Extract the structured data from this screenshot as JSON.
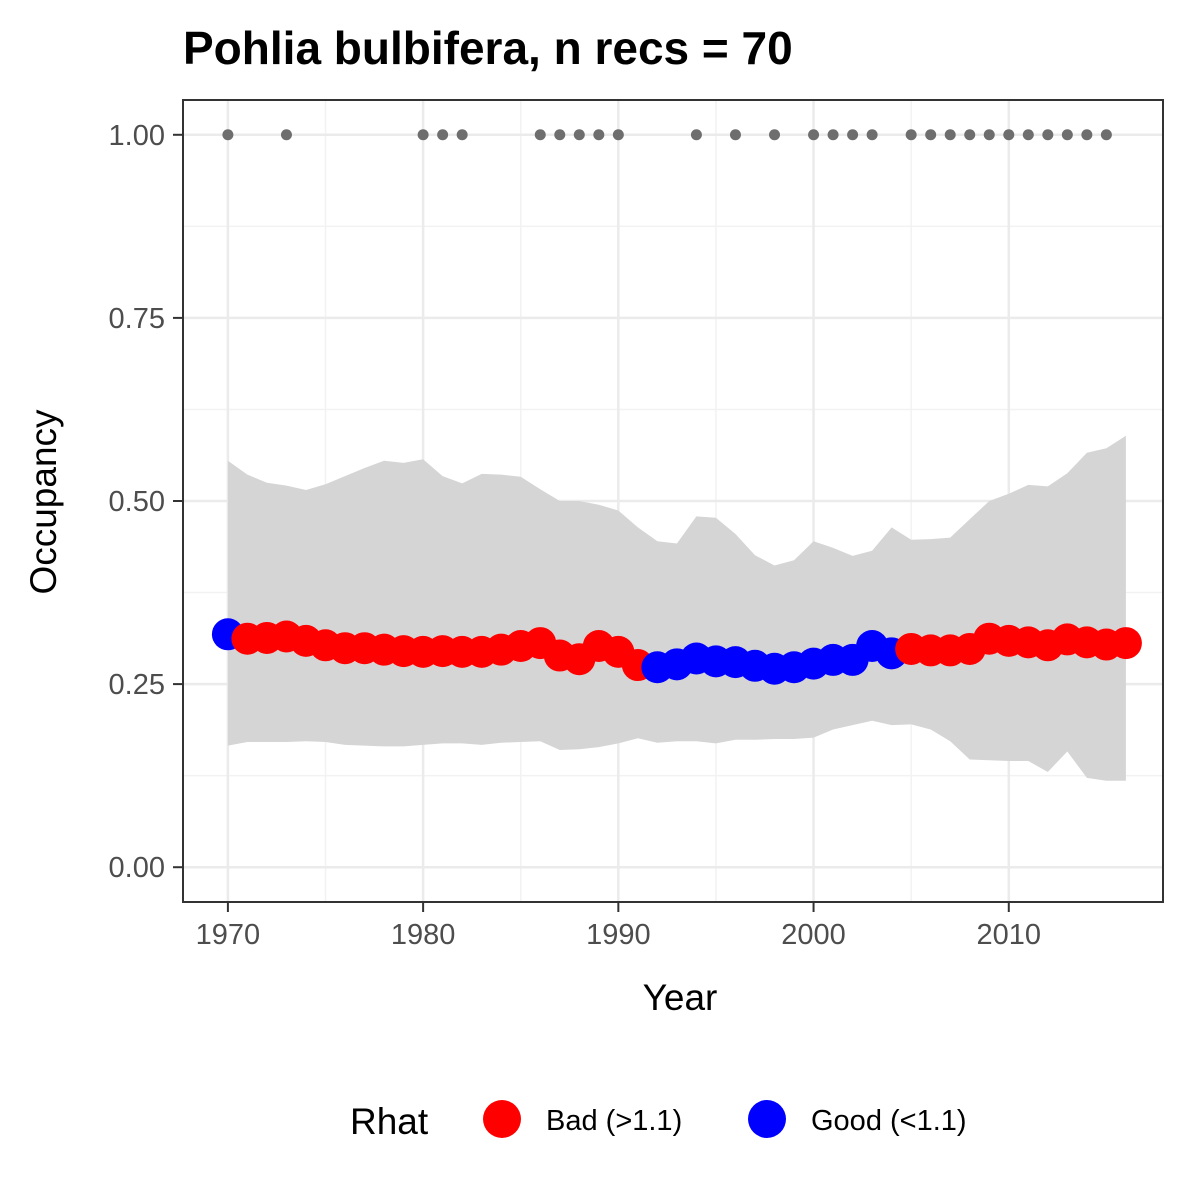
{
  "chart_data": {
    "type": "line",
    "title": "Pohlia bulbifera, n recs = 70",
    "xlabel": "Year",
    "ylabel": "Occupancy",
    "xlim": [
      1967.7,
      2017.9
    ],
    "ylim": [
      -0.0475,
      1.0475
    ],
    "x_ticks": [
      1970,
      1980,
      1990,
      2000,
      2010
    ],
    "x_tick_labels": [
      "1970",
      "1980",
      "1990",
      "2000",
      "2010"
    ],
    "y_ticks": [
      0,
      0.25,
      0.5,
      0.75,
      1.0
    ],
    "y_tick_labels": [
      "0.00",
      "0.25",
      "0.50",
      "0.75",
      "1.00"
    ],
    "grid": true,
    "legend": {
      "title": "Rhat",
      "position": "bottom",
      "entries": [
        {
          "label": "Bad (>1.1)",
          "color": "#ff0000"
        },
        {
          "label": "Good (<1.1)",
          "color": "#0000ff"
        }
      ]
    },
    "colors": {
      "bad": "#ff0000",
      "good": "#0000ff",
      "ribbon": "#d5d5d5",
      "records": "#6e6e6e"
    },
    "series": [
      {
        "name": "Occupancy",
        "x": [
          1970,
          1971,
          1972,
          1973,
          1974,
          1975,
          1976,
          1977,
          1978,
          1979,
          1980,
          1981,
          1982,
          1983,
          1984,
          1985,
          1986,
          1987,
          1988,
          1989,
          1990,
          1991,
          1992,
          1993,
          1994,
          1995,
          1996,
          1997,
          1998,
          1999,
          2000,
          2001,
          2002,
          2003,
          2004,
          2005,
          2006,
          2007,
          2008,
          2009,
          2010,
          2011,
          2012,
          2013,
          2014,
          2015,
          2016
        ],
        "y": [
          0.318,
          0.312,
          0.313,
          0.315,
          0.309,
          0.303,
          0.299,
          0.299,
          0.297,
          0.295,
          0.294,
          0.295,
          0.294,
          0.294,
          0.297,
          0.302,
          0.306,
          0.289,
          0.284,
          0.302,
          0.294,
          0.276,
          0.273,
          0.277,
          0.285,
          0.281,
          0.28,
          0.275,
          0.271,
          0.273,
          0.278,
          0.283,
          0.283,
          0.302,
          0.292,
          0.298,
          0.296,
          0.296,
          0.298,
          0.312,
          0.309,
          0.307,
          0.303,
          0.311,
          0.307,
          0.304,
          0.306
        ],
        "rhat": [
          "Good",
          "Bad",
          "Bad",
          "Bad",
          "Bad",
          "Bad",
          "Bad",
          "Bad",
          "Bad",
          "Bad",
          "Bad",
          "Bad",
          "Bad",
          "Bad",
          "Bad",
          "Bad",
          "Bad",
          "Bad",
          "Bad",
          "Bad",
          "Bad",
          "Bad",
          "Good",
          "Good",
          "Good",
          "Good",
          "Good",
          "Good",
          "Good",
          "Good",
          "Good",
          "Good",
          "Good",
          "Good",
          "Good",
          "Bad",
          "Bad",
          "Bad",
          "Bad",
          "Bad",
          "Bad",
          "Bad",
          "Bad",
          "Bad",
          "Bad",
          "Bad",
          "Bad"
        ]
      }
    ],
    "ribbon": {
      "x": [
        1970,
        1971,
        1972,
        1973,
        1974,
        1975,
        1976,
        1977,
        1978,
        1979,
        1980,
        1981,
        1982,
        1983,
        1984,
        1985,
        1986,
        1987,
        1988,
        1989,
        1990,
        1991,
        1992,
        1993,
        1994,
        1995,
        1996,
        1997,
        1998,
        1999,
        2000,
        2001,
        2002,
        2003,
        2004,
        2005,
        2006,
        2007,
        2008,
        2009,
        2010,
        2011,
        2012,
        2013,
        2014,
        2015,
        2016
      ],
      "upper": [
        0.555,
        0.536,
        0.525,
        0.521,
        0.515,
        0.523,
        0.534,
        0.545,
        0.555,
        0.552,
        0.557,
        0.534,
        0.524,
        0.537,
        0.536,
        0.533,
        0.516,
        0.5,
        0.5,
        0.495,
        0.487,
        0.464,
        0.445,
        0.442,
        0.479,
        0.477,
        0.455,
        0.426,
        0.412,
        0.419,
        0.445,
        0.436,
        0.425,
        0.432,
        0.464,
        0.447,
        0.448,
        0.45,
        0.475,
        0.5,
        0.51,
        0.522,
        0.52,
        0.538,
        0.566,
        0.572,
        0.589
      ],
      "lower": [
        0.166,
        0.171,
        0.171,
        0.171,
        0.172,
        0.171,
        0.167,
        0.166,
        0.165,
        0.165,
        0.167,
        0.169,
        0.169,
        0.167,
        0.17,
        0.171,
        0.172,
        0.16,
        0.161,
        0.164,
        0.169,
        0.176,
        0.17,
        0.172,
        0.172,
        0.169,
        0.174,
        0.174,
        0.175,
        0.175,
        0.177,
        0.188,
        0.194,
        0.2,
        0.194,
        0.195,
        0.188,
        0.172,
        0.147,
        0.146,
        0.145,
        0.145,
        0.13,
        0.158,
        0.122,
        0.118,
        0.118
      ]
    },
    "records": {
      "x": [
        1970,
        1973,
        1980,
        1981,
        1982,
        1986,
        1987,
        1988,
        1989,
        1990,
        1994,
        1996,
        1998,
        2000,
        2001,
        2002,
        2003,
        2005,
        2006,
        2007,
        2008,
        2009,
        2010,
        2011,
        2012,
        2013,
        2014,
        2015
      ],
      "y": 1.0
    }
  }
}
